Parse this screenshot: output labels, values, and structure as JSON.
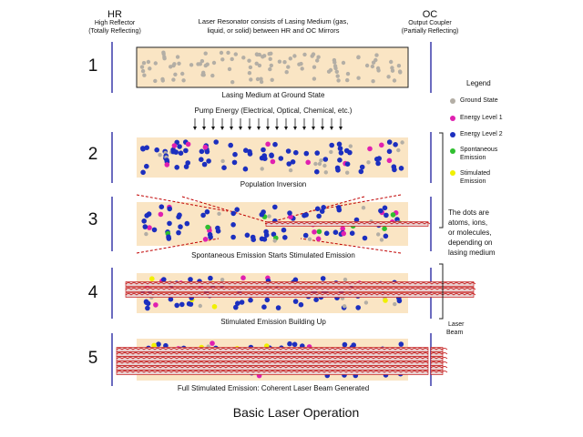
{
  "header": {
    "hr_title": "HR",
    "hr_sub1": "High Reflector",
    "hr_sub2": "(Totally Reflecting)",
    "intro_line1": "Laser Resonator consists of Lasing Medium (gas,",
    "intro_line2": "liquid, or solid) between HR and OC Mirrors",
    "oc_title": "OC",
    "oc_sub1": "Output Coupler",
    "oc_sub2": "(Partially Reflecting)"
  },
  "stages": [
    {
      "number": "1",
      "caption": "Lasing Medium at Ground State"
    },
    {
      "number": "2",
      "caption": "Population Inversion"
    },
    {
      "number": "3",
      "caption": "Spontaneous Emission Starts Stimulated Emission"
    },
    {
      "number": "4",
      "caption": "Stimulated Emission Building Up"
    },
    {
      "number": "5",
      "caption": "Full Stimulated Emission: Coherent Laser Beam Generated"
    }
  ],
  "pump_label": "Pump Energy (Electrical, Optical, Chemical, etc.)",
  "legend": {
    "title": "Legend",
    "items": [
      {
        "label": "Ground State",
        "color": "#b3aea5"
      },
      {
        "label": "Energy Level 1",
        "color": "#e020b0"
      },
      {
        "label": "Energy Level 2",
        "color": "#1c2fbf"
      },
      {
        "label": "Spontaneous Emission",
        "color": "#2fbf2f"
      },
      {
        "label": "Stimulated Emission",
        "color": "#f0f000"
      }
    ]
  },
  "note": {
    "line1": "The dots are",
    "line2": "atoms, ions,",
    "line3": "or molecules,",
    "line4": "depending on",
    "line5": "lasing medium"
  },
  "beam_label": {
    "line1": "Laser",
    "line2": "Beam"
  },
  "footer_title": "Basic Laser Operation",
  "colors": {
    "medium": "#fae5c4",
    "mirror": "#6b6bbf",
    "photon": "#c00000",
    "wave_fill": "#e8d0d0"
  }
}
